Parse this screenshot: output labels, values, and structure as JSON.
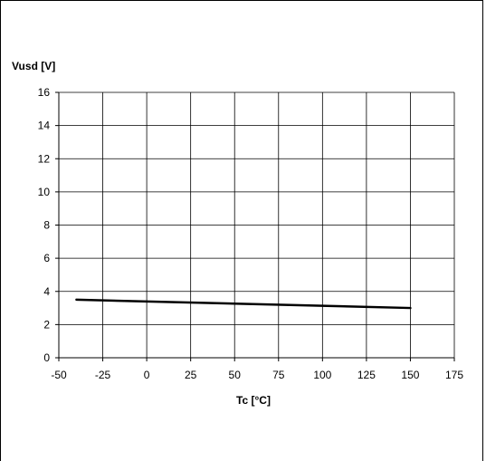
{
  "chart_data": {
    "type": "line",
    "title": "",
    "xlabel": "Tc [°C]",
    "ylabel": "Vusd [V]",
    "xlim": [
      -50,
      175
    ],
    "ylim": [
      0,
      16
    ],
    "x_ticks": [
      "-50",
      "-25",
      "0",
      "25",
      "50",
      "75",
      "100",
      "125",
      "150",
      "175"
    ],
    "y_ticks": [
      "0",
      "2",
      "4",
      "6",
      "8",
      "10",
      "12",
      "14",
      "16"
    ],
    "grid": true,
    "legend": "none",
    "series": [
      {
        "x": [
          -40,
          150
        ],
        "values": [
          3.5,
          3.0
        ],
        "color": "#000000"
      }
    ]
  }
}
